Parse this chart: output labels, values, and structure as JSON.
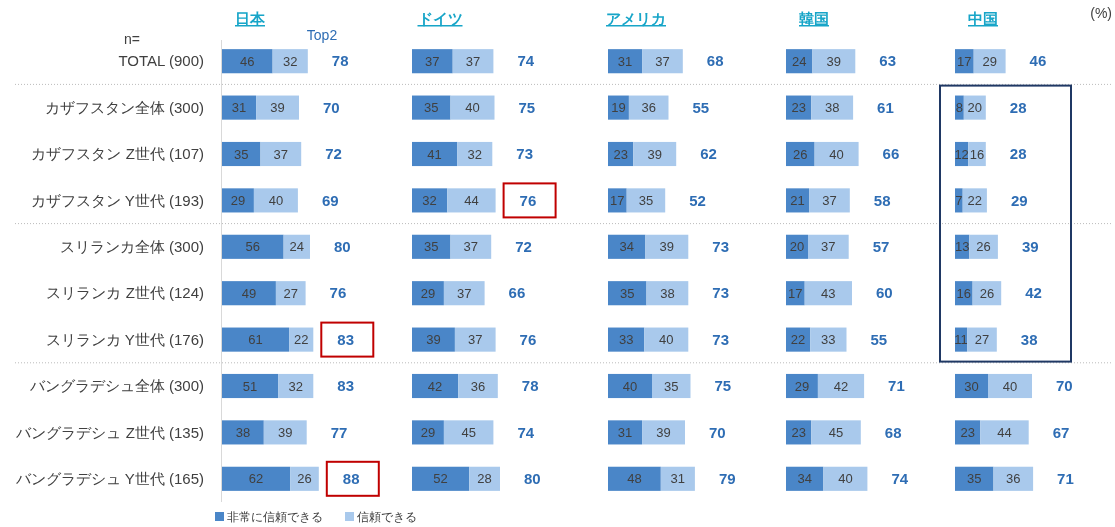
{
  "chart_data": [
    {
      "type": "bar",
      "title": "日本",
      "orientation": "horizontal",
      "stacked": true,
      "data_labels": true,
      "legend": "bottom",
      "tick_labels": "y",
      "categories": [
        "TOTAL (900)",
        "カザフスタン全体 (300)",
        "カザフスタン Z世代 (107)",
        "カザフスタン Y世代 (193)",
        "スリランカ全体 (300)",
        "スリランカ Z世代 (124)",
        "スリランカ Y世代 (176)",
        "バングラデシュ全体 (300)",
        "バングラデシュ Z世代 (135)",
        "バングラデシュ Y世代 (165)"
      ],
      "series": [
        {
          "name": "非常に信頼できる",
          "color": "#4a86c8",
          "values": [
            46,
            31,
            35,
            29,
            56,
            49,
            61,
            51,
            38,
            62
          ]
        },
        {
          "name": "信頼できる",
          "color": "#a9c9ec",
          "values": [
            32,
            39,
            37,
            40,
            24,
            27,
            22,
            32,
            39,
            26
          ]
        }
      ],
      "totals": [
        "78",
        "70",
        "72",
        "69",
        "80",
        "76",
        "83",
        "83",
        "77",
        "88"
      ],
      "annotations": [
        "n=",
        "Top2"
      ]
    },
    {
      "type": "bar",
      "title": "ドイツ",
      "orientation": "horizontal",
      "stacked": true,
      "data_labels": true,
      "categories": [
        null,
        null,
        null,
        null,
        null,
        null,
        null,
        null,
        null,
        null
      ],
      "series": [
        {
          "color": "#4a86c8",
          "values": [
            37,
            35,
            41,
            32,
            35,
            29,
            39,
            42,
            29,
            52
          ]
        },
        {
          "color": "#a9c9ec",
          "values": [
            37,
            40,
            32,
            44,
            37,
            37,
            37,
            36,
            45,
            28
          ]
        }
      ],
      "totals": [
        "74",
        "75",
        "73",
        "76",
        "72",
        "66",
        "76",
        "78",
        "74",
        "80"
      ]
    },
    {
      "type": "bar",
      "title": "アメリカ",
      "orientation": "horizontal",
      "stacked": true,
      "data_labels": true,
      "categories": [
        null,
        null,
        null,
        null,
        null,
        null,
        null,
        null,
        null,
        null
      ],
      "series": [
        {
          "color": "#4a86c8",
          "values": [
            31,
            19,
            23,
            17,
            34,
            35,
            33,
            40,
            31,
            48
          ]
        },
        {
          "color": "#a9c9ec",
          "values": [
            37,
            36,
            39,
            35,
            39,
            38,
            40,
            35,
            39,
            31
          ]
        }
      ],
      "totals": [
        "68",
        "55",
        "62",
        "52",
        "73",
        "73",
        "73",
        "75",
        "70",
        "79"
      ]
    },
    {
      "type": "bar",
      "title": "韓国",
      "orientation": "horizontal",
      "stacked": true,
      "data_labels": true,
      "categories": [
        null,
        null,
        null,
        null,
        null,
        null,
        null,
        null,
        null,
        null
      ],
      "series": [
        {
          "color": "#4a86c8",
          "values": [
            24,
            23,
            26,
            21,
            20,
            17,
            22,
            29,
            23,
            34
          ]
        },
        {
          "color": "#a9c9ec",
          "values": [
            39,
            38,
            40,
            37,
            37,
            43,
            33,
            42,
            45,
            40
          ]
        }
      ],
      "totals": [
        "63",
        "61",
        "66",
        "58",
        "57",
        "60",
        "55",
        "71",
        "68",
        "74"
      ]
    },
    {
      "type": "bar",
      "title": "中国",
      "orientation": "horizontal",
      "stacked": true,
      "data_labels": true,
      "categories": [
        null,
        null,
        null,
        null,
        null,
        null,
        null,
        null,
        null,
        null
      ],
      "series": [
        {
          "color": "#4a86c8",
          "values": [
            17,
            8,
            12,
            7,
            13,
            16,
            11,
            30,
            23,
            35
          ]
        },
        {
          "color": "#a9c9ec",
          "values": [
            29,
            20,
            16,
            22,
            26,
            26,
            27,
            40,
            44,
            36
          ]
        }
      ],
      "totals": [
        "46",
        "28",
        "28",
        "29",
        "39",
        "42",
        "38",
        "70",
        "67",
        "71"
      ],
      "annotations": [
        "(%)"
      ]
    }
  ]
}
